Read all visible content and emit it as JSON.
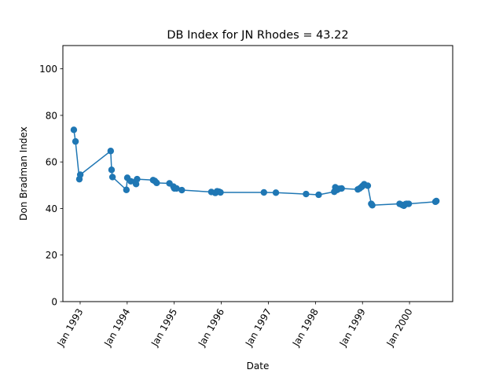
{
  "chart_data": {
    "type": "line",
    "title": "DB Index for JN Rhodes = 43.22",
    "xlabel": "Date",
    "ylabel": "Don Bradman Index",
    "ylim": [
      0,
      110
    ],
    "xlim": [
      "1992-08-20",
      "2000-12-01"
    ],
    "yticks": [
      0,
      20,
      40,
      60,
      80,
      100
    ],
    "xticks": [
      "1993-01-01",
      "1994-01-01",
      "1995-01-01",
      "1996-01-01",
      "1997-01-01",
      "1998-01-01",
      "1999-01-01",
      "2000-01-01"
    ],
    "xtick_labels": [
      "Jan 1993",
      "Jan 1994",
      "Jan 1995",
      "Jan 1996",
      "Jan 1997",
      "Jan 1998",
      "Jan 1999",
      "Jan 2000"
    ],
    "grid": false,
    "color": "#1f77b4",
    "x": [
      "1992-11-13",
      "1992-11-26",
      "1992-12-26",
      "1993-01-02",
      "1993-08-26",
      "1993-09-02",
      "1993-09-09",
      "1993-12-26",
      "1994-01-02",
      "1994-01-29",
      "1994-03-04",
      "1994-03-11",
      "1994-03-19",
      "1994-07-21",
      "1994-08-04",
      "1994-08-18",
      "1994-11-25",
      "1994-12-26",
      "1995-01-02",
      "1995-01-19",
      "1995-03-01",
      "1995-10-16",
      "1995-11-16",
      "1995-11-30",
      "1995-12-14",
      "1995-12-26",
      "1996-11-27",
      "1997-02-28",
      "1997-10-20",
      "1998-01-26",
      "1998-05-27",
      "1998-06-04",
      "1998-06-18",
      "1998-07-03",
      "1998-07-23",
      "1998-11-26",
      "1998-12-10",
      "1998-12-26",
      "1999-01-02",
      "1999-01-14",
      "1999-02-11",
      "1999-03-10",
      "1999-03-18",
      "1999-10-16",
      "1999-11-06",
      "1999-11-18",
      "1999-12-02",
      "1999-12-10",
      "1999-12-26",
      "2000-07-20",
      "2000-07-27"
    ],
    "values": [
      73.8,
      68.8,
      52.6,
      54.5,
      64.7,
      56.6,
      53.5,
      48.0,
      53.2,
      51.7,
      51.4,
      50.5,
      52.6,
      52.2,
      51.8,
      51.0,
      50.8,
      49.4,
      48.6,
      48.6,
      47.9,
      47.1,
      46.7,
      47.4,
      47.2,
      46.9,
      46.9,
      46.8,
      46.2,
      45.9,
      47.2,
      49.1,
      48.0,
      48.5,
      48.6,
      48.2,
      48.6,
      49.3,
      49.7,
      50.4,
      49.8,
      42.0,
      41.4,
      42.0,
      41.5,
      41.2,
      41.9,
      42.0,
      42.0,
      42.9,
      43.2
    ]
  }
}
